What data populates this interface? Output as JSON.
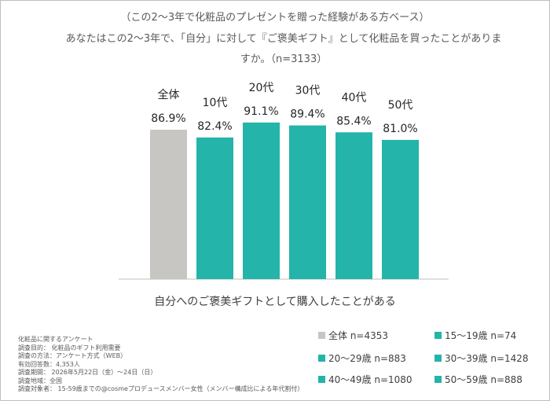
{
  "subtitle": "（この2～3年で化粧品のプレゼントを贈った経験がある方ベース）",
  "question_line1": "あなたはこの2～3年で、「自分」に対して『ご褒美ギフト』として化粧品を買ったことがありま",
  "question_line2": "すか。（n=3133）",
  "colors": {
    "total": "#c8c6c2",
    "age": "#24b4a9",
    "axis": "#bfbfbf"
  },
  "chart_data": {
    "type": "bar",
    "xlabel": "自分へのご褒美ギフトとして購入したことがある",
    "ylim": [
      0,
      100
    ],
    "categories": [
      "全体",
      "10代",
      "20代",
      "30代",
      "40代",
      "50代"
    ],
    "values": [
      86.9,
      82.4,
      91.1,
      89.4,
      85.4,
      81.0
    ],
    "value_labels": [
      "86.9%",
      "82.4%",
      "91.1%",
      "89.4%",
      "85.4%",
      "81.0%"
    ],
    "bar_colors": [
      "#c8c6c2",
      "#24b4a9",
      "#24b4a9",
      "#24b4a9",
      "#24b4a9",
      "#24b4a9"
    ]
  },
  "legend": [
    {
      "label": "全体 n=4353",
      "color": "#c8c6c2"
    },
    {
      "label": "15～19歳 n=74",
      "color": "#24b4a9"
    },
    {
      "label": "20～29歳 n=883",
      "color": "#24b4a9"
    },
    {
      "label": "30～39歳 n=1428",
      "color": "#24b4a9"
    },
    {
      "label": "40～49歳 n=1080",
      "color": "#24b4a9"
    },
    {
      "label": "50～59歳 n=888",
      "color": "#24b4a9"
    }
  ],
  "notes": [
    "化粧品に関するアンケート",
    "調査目的： 化粧品のギフト利用需要",
    "調査の方法：アンケート方式（WEB）",
    "有効回答数：4,353人",
    "調査期間： 2026年5月22日（金）～24日（日）",
    "調査地域：全国",
    "調査対象者： 15-59歳までの@cosmeプロデュースメンバー女性（メンバー構成比による年代割付）"
  ]
}
